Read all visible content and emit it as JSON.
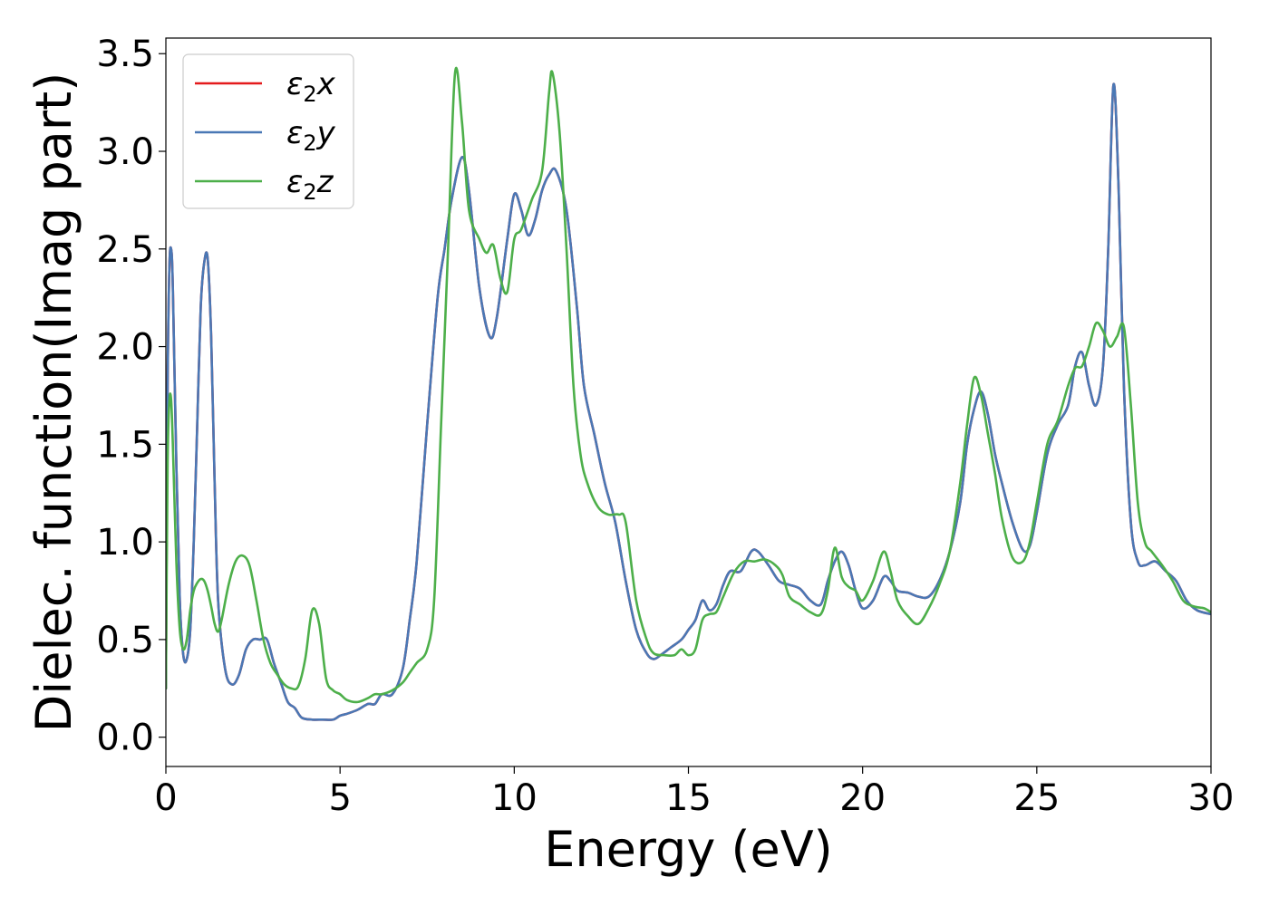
{
  "chart_data": {
    "type": "line",
    "xlabel": "Energy (eV)",
    "ylabel": "Dielec. function(Imag part)",
    "xlim": [
      0,
      30
    ],
    "ylim": [
      -0.15,
      3.58
    ],
    "xticks": [
      0,
      5,
      10,
      15,
      20,
      25,
      30
    ],
    "yticks": [
      0.0,
      0.5,
      1.0,
      1.5,
      2.0,
      2.5,
      3.0,
      3.5
    ],
    "grid": false,
    "legend": {
      "position": "top-left"
    },
    "series": [
      {
        "name": "ε₂x",
        "label_base": "ε",
        "label_sub": "2",
        "label_suffix": "x",
        "color": "#e41a1c",
        "x": [
          0.0,
          0.05,
          0.1,
          0.15,
          0.2,
          0.3,
          0.4,
          0.5,
          0.6,
          0.7,
          0.8,
          0.9,
          1.0,
          1.1,
          1.2,
          1.3,
          1.4,
          1.5,
          1.7,
          1.9,
          2.1,
          2.3,
          2.5,
          2.7,
          2.9,
          3.1,
          3.3,
          3.5,
          3.7,
          3.9,
          4.2,
          4.5,
          4.8,
          5.0,
          5.2,
          5.5,
          5.8,
          6.0,
          6.2,
          6.5,
          6.8,
          7.0,
          7.2,
          7.5,
          7.8,
          8.0,
          8.2,
          8.5,
          8.7,
          9.0,
          9.3,
          9.5,
          9.8,
          10.0,
          10.2,
          10.4,
          10.6,
          10.8,
          11.0,
          11.2,
          11.5,
          11.8,
          12.0,
          12.3,
          12.6,
          12.9,
          13.2,
          13.5,
          13.8,
          14.0,
          14.2,
          14.5,
          14.8,
          15.0,
          15.2,
          15.4,
          15.6,
          15.8,
          16.0,
          16.2,
          16.5,
          16.8,
          17.0,
          17.3,
          17.6,
          17.9,
          18.2,
          18.5,
          18.8,
          19.0,
          19.2,
          19.4,
          19.6,
          19.8,
          20.0,
          20.3,
          20.6,
          20.8,
          21.0,
          21.3,
          21.6,
          21.9,
          22.2,
          22.5,
          22.8,
          23.0,
          23.2,
          23.4,
          23.6,
          23.8,
          24.0,
          24.3,
          24.6,
          24.8,
          25.0,
          25.3,
          25.6,
          25.9,
          26.1,
          26.3,
          26.5,
          26.7,
          26.9,
          27.05,
          27.2,
          27.35,
          27.5,
          27.7,
          27.9,
          28.1,
          28.4,
          28.7,
          29.0,
          29.3,
          29.6,
          30.0
        ],
        "y": [
          0.25,
          1.8,
          2.4,
          2.5,
          2.3,
          1.4,
          0.7,
          0.42,
          0.4,
          0.55,
          1.0,
          1.6,
          2.2,
          2.43,
          2.45,
          2.05,
          1.3,
          0.7,
          0.35,
          0.27,
          0.32,
          0.45,
          0.5,
          0.5,
          0.5,
          0.38,
          0.28,
          0.18,
          0.15,
          0.1,
          0.09,
          0.09,
          0.09,
          0.11,
          0.12,
          0.14,
          0.17,
          0.17,
          0.22,
          0.22,
          0.35,
          0.6,
          0.9,
          1.6,
          2.25,
          2.5,
          2.75,
          2.97,
          2.8,
          2.3,
          2.05,
          2.15,
          2.55,
          2.78,
          2.7,
          2.57,
          2.65,
          2.8,
          2.88,
          2.9,
          2.7,
          2.2,
          1.8,
          1.55,
          1.3,
          1.1,
          0.8,
          0.55,
          0.43,
          0.4,
          0.42,
          0.46,
          0.5,
          0.55,
          0.6,
          0.7,
          0.65,
          0.68,
          0.78,
          0.85,
          0.85,
          0.95,
          0.95,
          0.88,
          0.8,
          0.78,
          0.76,
          0.7,
          0.68,
          0.8,
          0.9,
          0.95,
          0.88,
          0.75,
          0.66,
          0.7,
          0.82,
          0.8,
          0.75,
          0.74,
          0.72,
          0.72,
          0.8,
          0.95,
          1.2,
          1.5,
          1.68,
          1.77,
          1.65,
          1.45,
          1.3,
          1.1,
          0.96,
          0.98,
          1.15,
          1.45,
          1.6,
          1.7,
          1.9,
          1.97,
          1.8,
          1.7,
          1.9,
          2.5,
          3.34,
          2.8,
          1.8,
          1.1,
          0.9,
          0.88,
          0.9,
          0.85,
          0.8,
          0.7,
          0.65,
          0.63
        ]
      },
      {
        "name": "ε₂y",
        "label_base": "ε",
        "label_sub": "2",
        "label_suffix": "y",
        "color": "#4a78b5",
        "x": [
          0.0,
          0.05,
          0.1,
          0.15,
          0.2,
          0.3,
          0.4,
          0.5,
          0.6,
          0.7,
          0.8,
          0.9,
          1.0,
          1.1,
          1.2,
          1.3,
          1.4,
          1.5,
          1.7,
          1.9,
          2.1,
          2.3,
          2.5,
          2.7,
          2.9,
          3.1,
          3.3,
          3.5,
          3.7,
          3.9,
          4.2,
          4.5,
          4.8,
          5.0,
          5.2,
          5.5,
          5.8,
          6.0,
          6.2,
          6.5,
          6.8,
          7.0,
          7.2,
          7.5,
          7.8,
          8.0,
          8.2,
          8.5,
          8.7,
          9.0,
          9.3,
          9.5,
          9.8,
          10.0,
          10.2,
          10.4,
          10.6,
          10.8,
          11.0,
          11.2,
          11.5,
          11.8,
          12.0,
          12.3,
          12.6,
          12.9,
          13.2,
          13.5,
          13.8,
          14.0,
          14.2,
          14.5,
          14.8,
          15.0,
          15.2,
          15.4,
          15.6,
          15.8,
          16.0,
          16.2,
          16.5,
          16.8,
          17.0,
          17.3,
          17.6,
          17.9,
          18.2,
          18.5,
          18.8,
          19.0,
          19.2,
          19.4,
          19.6,
          19.8,
          20.0,
          20.3,
          20.6,
          20.8,
          21.0,
          21.3,
          21.6,
          21.9,
          22.2,
          22.5,
          22.8,
          23.0,
          23.2,
          23.4,
          23.6,
          23.8,
          24.0,
          24.3,
          24.6,
          24.8,
          25.0,
          25.3,
          25.6,
          25.9,
          26.1,
          26.3,
          26.5,
          26.7,
          26.9,
          27.05,
          27.2,
          27.35,
          27.5,
          27.7,
          27.9,
          28.1,
          28.4,
          28.7,
          29.0,
          29.3,
          29.6,
          30.0
        ],
        "y": [
          0.25,
          1.8,
          2.4,
          2.5,
          2.3,
          1.4,
          0.7,
          0.42,
          0.4,
          0.55,
          1.0,
          1.6,
          2.2,
          2.43,
          2.45,
          2.05,
          1.3,
          0.7,
          0.35,
          0.27,
          0.32,
          0.45,
          0.5,
          0.5,
          0.5,
          0.38,
          0.28,
          0.18,
          0.15,
          0.1,
          0.09,
          0.09,
          0.09,
          0.11,
          0.12,
          0.14,
          0.17,
          0.17,
          0.22,
          0.22,
          0.35,
          0.6,
          0.9,
          1.6,
          2.25,
          2.5,
          2.75,
          2.97,
          2.8,
          2.3,
          2.05,
          2.15,
          2.55,
          2.78,
          2.7,
          2.57,
          2.65,
          2.8,
          2.88,
          2.9,
          2.7,
          2.2,
          1.8,
          1.55,
          1.3,
          1.1,
          0.8,
          0.55,
          0.43,
          0.4,
          0.42,
          0.46,
          0.5,
          0.55,
          0.6,
          0.7,
          0.65,
          0.68,
          0.78,
          0.85,
          0.85,
          0.95,
          0.95,
          0.88,
          0.8,
          0.78,
          0.76,
          0.7,
          0.68,
          0.8,
          0.9,
          0.95,
          0.88,
          0.75,
          0.66,
          0.7,
          0.82,
          0.8,
          0.75,
          0.74,
          0.72,
          0.72,
          0.8,
          0.95,
          1.2,
          1.5,
          1.68,
          1.77,
          1.65,
          1.45,
          1.3,
          1.1,
          0.96,
          0.98,
          1.15,
          1.45,
          1.6,
          1.7,
          1.9,
          1.97,
          1.8,
          1.7,
          1.9,
          2.5,
          3.34,
          2.8,
          1.8,
          1.1,
          0.9,
          0.88,
          0.9,
          0.85,
          0.8,
          0.7,
          0.65,
          0.63
        ]
      },
      {
        "name": "ε₂z",
        "label_base": "ε",
        "label_sub": "2",
        "label_suffix": "z",
        "color": "#4daf4a",
        "x": [
          0.0,
          0.05,
          0.1,
          0.15,
          0.2,
          0.3,
          0.4,
          0.5,
          0.6,
          0.7,
          0.8,
          0.9,
          1.0,
          1.1,
          1.2,
          1.3,
          1.4,
          1.5,
          1.6,
          1.8,
          2.0,
          2.2,
          2.4,
          2.6,
          2.8,
          3.0,
          3.2,
          3.4,
          3.6,
          3.8,
          4.0,
          4.2,
          4.4,
          4.6,
          4.8,
          5.0,
          5.2,
          5.5,
          5.8,
          6.0,
          6.2,
          6.5,
          6.8,
          7.0,
          7.2,
          7.5,
          7.7,
          7.9,
          8.1,
          8.3,
          8.5,
          8.7,
          9.0,
          9.2,
          9.4,
          9.6,
          9.8,
          10.0,
          10.2,
          10.5,
          10.8,
          11.0,
          11.1,
          11.3,
          11.5,
          11.7,
          11.9,
          12.1,
          12.4,
          12.7,
          13.0,
          13.2,
          13.5,
          13.8,
          14.0,
          14.3,
          14.6,
          14.8,
          15.0,
          15.2,
          15.4,
          15.6,
          15.8,
          16.0,
          16.3,
          16.6,
          16.9,
          17.2,
          17.5,
          17.7,
          17.9,
          18.2,
          18.5,
          18.8,
          19.0,
          19.2,
          19.4,
          19.6,
          19.8,
          20.0,
          20.3,
          20.6,
          20.8,
          21.0,
          21.3,
          21.6,
          21.9,
          22.2,
          22.5,
          22.8,
          23.0,
          23.2,
          23.4,
          23.6,
          23.8,
          24.0,
          24.3,
          24.6,
          24.8,
          25.0,
          25.3,
          25.6,
          25.9,
          26.1,
          26.3,
          26.5,
          26.7,
          26.9,
          27.1,
          27.3,
          27.5,
          27.7,
          27.9,
          28.1,
          28.3,
          28.6,
          28.9,
          29.2,
          29.5,
          29.8,
          30.0
        ],
        "y": [
          0.25,
          1.4,
          1.72,
          1.73,
          1.5,
          0.9,
          0.55,
          0.45,
          0.5,
          0.65,
          0.75,
          0.79,
          0.81,
          0.8,
          0.75,
          0.67,
          0.58,
          0.54,
          0.6,
          0.78,
          0.9,
          0.93,
          0.88,
          0.7,
          0.5,
          0.38,
          0.32,
          0.27,
          0.25,
          0.26,
          0.4,
          0.65,
          0.58,
          0.3,
          0.24,
          0.22,
          0.19,
          0.18,
          0.2,
          0.22,
          0.22,
          0.24,
          0.28,
          0.33,
          0.38,
          0.45,
          0.7,
          1.6,
          2.5,
          3.4,
          3.15,
          2.7,
          2.55,
          2.48,
          2.52,
          2.35,
          2.28,
          2.55,
          2.6,
          2.75,
          2.9,
          3.3,
          3.4,
          3.1,
          2.5,
          1.8,
          1.45,
          1.3,
          1.18,
          1.14,
          1.14,
          1.1,
          0.7,
          0.5,
          0.43,
          0.42,
          0.42,
          0.45,
          0.42,
          0.45,
          0.6,
          0.63,
          0.64,
          0.72,
          0.84,
          0.9,
          0.9,
          0.91,
          0.88,
          0.83,
          0.72,
          0.68,
          0.64,
          0.63,
          0.75,
          0.97,
          0.82,
          0.77,
          0.75,
          0.7,
          0.8,
          0.95,
          0.85,
          0.7,
          0.62,
          0.58,
          0.66,
          0.78,
          0.95,
          1.3,
          1.6,
          1.84,
          1.75,
          1.55,
          1.35,
          1.12,
          0.92,
          0.9,
          1.0,
          1.2,
          1.5,
          1.62,
          1.8,
          1.89,
          1.9,
          2.0,
          2.12,
          2.08,
          2.0,
          2.05,
          2.1,
          1.7,
          1.2,
          1.0,
          0.95,
          0.88,
          0.8,
          0.7,
          0.67,
          0.66,
          0.64
        ]
      }
    ]
  }
}
